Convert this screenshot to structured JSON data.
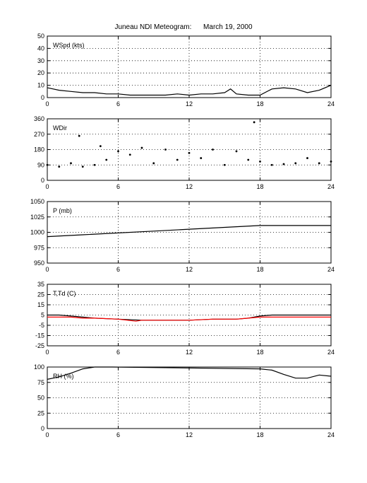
{
  "title": "Juneau NDI Meteogram:      March 19, 2000",
  "chart_data": [
    {
      "type": "line",
      "label": "WSpd (kts)",
      "ylim": [
        0,
        50
      ],
      "yticks": [
        "0",
        "10",
        "20",
        "30",
        "40",
        "50"
      ],
      "xlim": [
        0,
        24
      ],
      "xticks": [
        "0",
        "6",
        "12",
        "18",
        "24"
      ],
      "grid": true,
      "series": [
        {
          "color": "#000000",
          "x": [
            0,
            1,
            2,
            3,
            4,
            5,
            6,
            7,
            8,
            9,
            10,
            11,
            12,
            13,
            14,
            15,
            15.5,
            16,
            17,
            18,
            19,
            20,
            21,
            22,
            23,
            24
          ],
          "y": [
            8,
            6,
            5,
            4,
            4,
            3,
            3,
            2,
            2,
            2,
            2,
            3,
            2,
            3,
            3,
            4,
            7,
            3,
            2,
            2,
            7,
            8,
            7,
            4,
            6,
            10
          ]
        }
      ]
    },
    {
      "type": "scatter",
      "label": "WDir",
      "ylim": [
        0,
        360
      ],
      "yticks": [
        "0",
        "90",
        "180",
        "270",
        "360"
      ],
      "xlim": [
        0,
        24
      ],
      "xticks": [
        "0",
        "6",
        "12",
        "18",
        "24"
      ],
      "grid": true,
      "series": [
        {
          "color": "#000000",
          "x": [
            0,
            1,
            2,
            2.7,
            3,
            4,
            4.5,
            5,
            6,
            7,
            8,
            9,
            10,
            11,
            12,
            13,
            14,
            15,
            16,
            17,
            17.5,
            18,
            19,
            20,
            21,
            22,
            23,
            24
          ],
          "y": [
            90,
            80,
            100,
            260,
            80,
            90,
            200,
            120,
            170,
            150,
            190,
            100,
            180,
            120,
            160,
            130,
            180,
            90,
            170,
            120,
            340,
            110,
            90,
            95,
            100,
            130,
            100,
            110
          ]
        }
      ]
    },
    {
      "type": "line",
      "label": "P (mb)",
      "ylim": [
        950,
        1050
      ],
      "yticks": [
        "950",
        "975",
        "1000",
        "1025",
        "1050"
      ],
      "xlim": [
        0,
        24
      ],
      "xticks": [
        "0",
        "6",
        "12",
        "18",
        "24"
      ],
      "grid": true,
      "series": [
        {
          "color": "#000000",
          "x": [
            0,
            3,
            6,
            9,
            12,
            15,
            18,
            21,
            24
          ],
          "y": [
            993,
            996,
            999,
            1002,
            1005,
            1008,
            1011,
            1011,
            1011
          ]
        }
      ]
    },
    {
      "type": "line",
      "label": "T,Td (C)",
      "ylim": [
        -25,
        35
      ],
      "yticks": [
        "-25",
        "-15",
        "-5",
        "5",
        "15",
        "25",
        "35"
      ],
      "xlim": [
        0,
        24
      ],
      "xticks": [
        "0",
        "6",
        "12",
        "18",
        "24"
      ],
      "grid": true,
      "series": [
        {
          "color": "#000000",
          "x": [
            0,
            1,
            2,
            3,
            4,
            6,
            8,
            10,
            12,
            14,
            16,
            17,
            18,
            19,
            20,
            22,
            24
          ],
          "y": [
            5,
            5,
            4,
            3,
            2,
            1,
            0,
            0,
            0,
            1,
            1,
            2,
            4,
            5,
            5,
            5,
            5
          ]
        },
        {
          "color": "#ff0000",
          "x": [
            0,
            1,
            2,
            3,
            4,
            6,
            7.5,
            8,
            10,
            12,
            14,
            16,
            17,
            18,
            19,
            20,
            22,
            24
          ],
          "y": [
            3,
            3,
            3,
            2,
            2,
            1,
            -1,
            0,
            0,
            0,
            1,
            1,
            2,
            3,
            3,
            3,
            3,
            3
          ]
        }
      ]
    },
    {
      "type": "line",
      "label": "RH (%)",
      "ylim": [
        0,
        100
      ],
      "yticks": [
        "0",
        "25",
        "50",
        "75",
        "100"
      ],
      "xlim": [
        0,
        24
      ],
      "xticks": [
        "0",
        "6",
        "12",
        "18",
        "24"
      ],
      "grid": true,
      "series": [
        {
          "color": "#000000",
          "x": [
            0,
            0.5,
            1,
            2,
            3,
            4,
            5,
            5.5,
            18,
            19,
            20,
            21,
            22,
            23,
            24
          ],
          "y": [
            80,
            82,
            84,
            90,
            97,
            100,
            100,
            100,
            97,
            95,
            88,
            82,
            82,
            87,
            85
          ]
        }
      ]
    }
  ]
}
